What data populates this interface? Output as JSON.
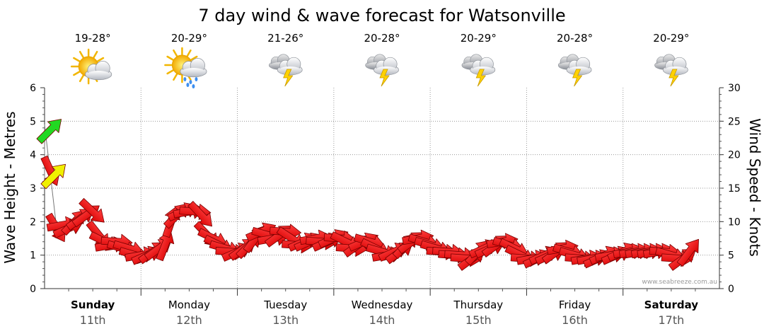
{
  "chart_data": {
    "type": "line",
    "title": "7 day wind & wave forecast for Watsonville",
    "ylabel": "Wave Height - Metres",
    "y2label": "Wind Speed - Knots",
    "ylim": [
      0,
      6
    ],
    "y2lim": [
      0,
      30
    ],
    "yticks": [
      "0",
      "1",
      "2",
      "3",
      "4",
      "5",
      "6"
    ],
    "y2ticks": [
      "0",
      "5",
      "10",
      "15",
      "20",
      "25",
      "30"
    ],
    "days": [
      {
        "name": "Sunday",
        "date": "11th",
        "temp": "19-28°",
        "icon": "partly-cloudy-sun-icon",
        "bold": true
      },
      {
        "name": "Monday",
        "date": "12th",
        "temp": "20-29°",
        "icon": "sun-cloud-rain-icon",
        "bold": false
      },
      {
        "name": "Tuesday",
        "date": "13th",
        "temp": "21-26°",
        "icon": "thunderstorm-icon",
        "bold": false
      },
      {
        "name": "Wednesday",
        "date": "14th",
        "temp": "20-28°",
        "icon": "thunderstorm-icon",
        "bold": false
      },
      {
        "name": "Thursday",
        "date": "15th",
        "temp": "20-29°",
        "icon": "thunderstorm-icon",
        "bold": false
      },
      {
        "name": "Friday",
        "date": "16th",
        "temp": "20-28°",
        "icon": "thunderstorm-icon",
        "bold": false
      },
      {
        "name": "Saturday",
        "date": "17th",
        "temp": "20-29°",
        "icon": "thunderstorm-icon",
        "bold": true
      }
    ],
    "series": [
      {
        "name": "Wind Speed (knots)",
        "unit": "knots",
        "color": "#ff0000",
        "start_day": 0.0,
        "step_days": 0.0625,
        "values": [
          24.5,
          17.5,
          9.0,
          9.5,
          9.0,
          10.0,
          10.5,
          11.0,
          11.5,
          8.0,
          7.0,
          6.5,
          7.0,
          6.0,
          6.0,
          5.0,
          5.0,
          5.0,
          5.5,
          6.0,
          6.5,
          10.0,
          11.0,
          11.5,
          11.5,
          11.5,
          11.0,
          8.0,
          7.5,
          6.5,
          6.0,
          5.5,
          5.5,
          6.0,
          6.5,
          7.5,
          8.5,
          8.0,
          7.5,
          8.0,
          8.5,
          7.5,
          6.5,
          7.0,
          7.0,
          7.5,
          7.0,
          7.0,
          7.5,
          7.5,
          7.0,
          6.0,
          6.5,
          7.0,
          7.0,
          6.0,
          5.5,
          5.0,
          5.5,
          5.5,
          6.5,
          7.0,
          7.5,
          7.0,
          6.5,
          6.0,
          5.5,
          5.5,
          5.0,
          5.0,
          4.5,
          4.5,
          5.5,
          6.0,
          6.0,
          6.5,
          7.0,
          6.5,
          6.0,
          5.0,
          4.5,
          4.5,
          4.5,
          5.0,
          5.0,
          5.5,
          6.0,
          5.5,
          5.0,
          4.5,
          4.5,
          4.5,
          4.5,
          5.0,
          5.0,
          5.0,
          5.5,
          5.5,
          5.5,
          5.5,
          5.5,
          5.5,
          5.5,
          5.5,
          5.0,
          4.5,
          4.5,
          5.5
        ]
      },
      {
        "name": "Wave Height (metres)",
        "unit": "m",
        "color": "#f0f000",
        "start_day": 0.0,
        "step_days": 0.0625,
        "values": [
          3.3
        ]
      }
    ],
    "points": [
      {
        "name": "Wind Speed (knots) peak",
        "day": 0.0,
        "value": 24.5,
        "color": "#22d822"
      }
    ]
  },
  "watermark": "www.seabreeze.com.au"
}
